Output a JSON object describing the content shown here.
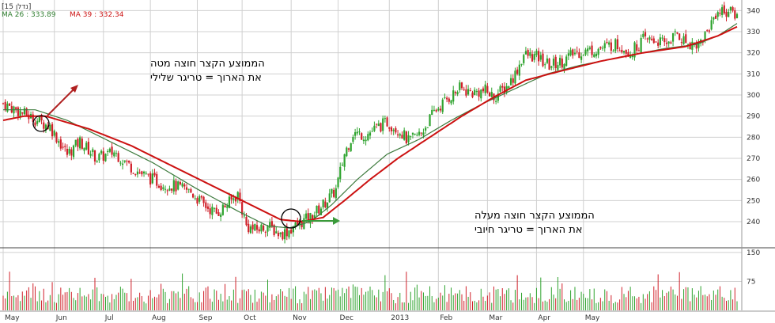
{
  "header": {
    "symbol": "[נדלן 15]",
    "ma_short_label": "MA 26 : 333.89",
    "ma_long_label": "MA 39 : 332.34"
  },
  "colors": {
    "up": "#2ea32e",
    "down": "#d0202a",
    "ma_short": "#3d7a3d",
    "ma_long": "#cc1111",
    "grid": "#d0d0d0",
    "volume_up": "#2ea32e",
    "volume_down": "#d0202a"
  },
  "annotations": {
    "bearish_line1": "הממוצע הקצר חוצה מטה",
    "bearish_line2": "את הארוך = טריגר שלילי",
    "bullish_line1": "הממוצע הקצר חוצה מעלה",
    "bullish_line2": "את הארוך = טריגר חיובי"
  },
  "chart_data": {
    "type": "candlestick",
    "price_axis": {
      "range": [
        228,
        345
      ],
      "ticks": [
        240,
        250,
        260,
        270,
        280,
        290,
        300,
        310,
        320,
        330,
        340
      ]
    },
    "volume_axis": {
      "range": [
        0,
        160
      ],
      "ticks": [
        75,
        150
      ]
    },
    "x_labels": [
      "May",
      "Jun",
      "Jul",
      "Aug",
      "Sep",
      "Oct",
      "Nov",
      "Dec",
      "2013",
      "Feb",
      "Mar",
      "Apr",
      "May"
    ],
    "grid": true,
    "price_path": [
      [
        0,
        296
      ],
      [
        8,
        292
      ],
      [
        16,
        288
      ],
      [
        22,
        285
      ],
      [
        30,
        272
      ],
      [
        36,
        278
      ],
      [
        44,
        270
      ],
      [
        52,
        273
      ],
      [
        60,
        266
      ],
      [
        66,
        262
      ],
      [
        74,
        258
      ],
      [
        80,
        257
      ],
      [
        88,
        254
      ],
      [
        94,
        248
      ],
      [
        100,
        244
      ],
      [
        106,
        249
      ],
      [
        110,
        253
      ],
      [
        114,
        238
      ],
      [
        118,
        236
      ],
      [
        124,
        238
      ],
      [
        130,
        234
      ],
      [
        136,
        237
      ],
      [
        140,
        240
      ],
      [
        144,
        242
      ],
      [
        150,
        248
      ],
      [
        156,
        255
      ],
      [
        160,
        272
      ],
      [
        164,
        282
      ],
      [
        170,
        281
      ],
      [
        176,
        285
      ],
      [
        180,
        287
      ],
      [
        186,
        283
      ],
      [
        190,
        278
      ],
      [
        196,
        282
      ],
      [
        202,
        292
      ],
      [
        208,
        298
      ],
      [
        214,
        303
      ],
      [
        220,
        301
      ],
      [
        226,
        302
      ],
      [
        230,
        299
      ],
      [
        236,
        304
      ],
      [
        240,
        310
      ],
      [
        244,
        319
      ],
      [
        250,
        318
      ],
      [
        256,
        314
      ],
      [
        262,
        316
      ],
      [
        268,
        320
      ],
      [
        274,
        321
      ],
      [
        280,
        322
      ],
      [
        286,
        324
      ],
      [
        290,
        323
      ],
      [
        294,
        320
      ],
      [
        300,
        326
      ],
      [
        306,
        326
      ],
      [
        310,
        324
      ],
      [
        316,
        329
      ],
      [
        320,
        325
      ],
      [
        326,
        324
      ],
      [
        330,
        330
      ],
      [
        334,
        339
      ],
      [
        338,
        340
      ],
      [
        341,
        339
      ],
      [
        344,
        338
      ]
    ],
    "series": [
      {
        "name": "MA 26",
        "last": 333.89,
        "points": [
          [
            0,
            293
          ],
          [
            15,
            293
          ],
          [
            30,
            288
          ],
          [
            50,
            278
          ],
          [
            70,
            268
          ],
          [
            90,
            256
          ],
          [
            110,
            245
          ],
          [
            124,
            238
          ],
          [
            134,
            237
          ],
          [
            144,
            240
          ],
          [
            154,
            248
          ],
          [
            166,
            260
          ],
          [
            180,
            272
          ],
          [
            195,
            279
          ],
          [
            210,
            288
          ],
          [
            225,
            296
          ],
          [
            240,
            303
          ],
          [
            255,
            310
          ],
          [
            270,
            314
          ],
          [
            290,
            318
          ],
          [
            310,
            322
          ],
          [
            325,
            324
          ],
          [
            335,
            328
          ],
          [
            344,
            333.89
          ]
        ]
      },
      {
        "name": "MA 39",
        "last": 332.34,
        "points": [
          [
            0,
            288
          ],
          [
            10,
            290
          ],
          [
            20,
            290
          ],
          [
            40,
            284
          ],
          [
            60,
            276
          ],
          [
            80,
            266
          ],
          [
            100,
            256
          ],
          [
            120,
            246
          ],
          [
            130,
            241
          ],
          [
            140,
            240
          ],
          [
            150,
            242
          ],
          [
            160,
            250
          ],
          [
            172,
            260
          ],
          [
            185,
            270
          ],
          [
            200,
            280
          ],
          [
            215,
            290
          ],
          [
            230,
            299
          ],
          [
            245,
            307
          ],
          [
            260,
            311
          ],
          [
            280,
            316
          ],
          [
            300,
            320
          ],
          [
            320,
            323
          ],
          [
            335,
            328
          ],
          [
            344,
            332.34
          ]
        ]
      }
    ]
  }
}
